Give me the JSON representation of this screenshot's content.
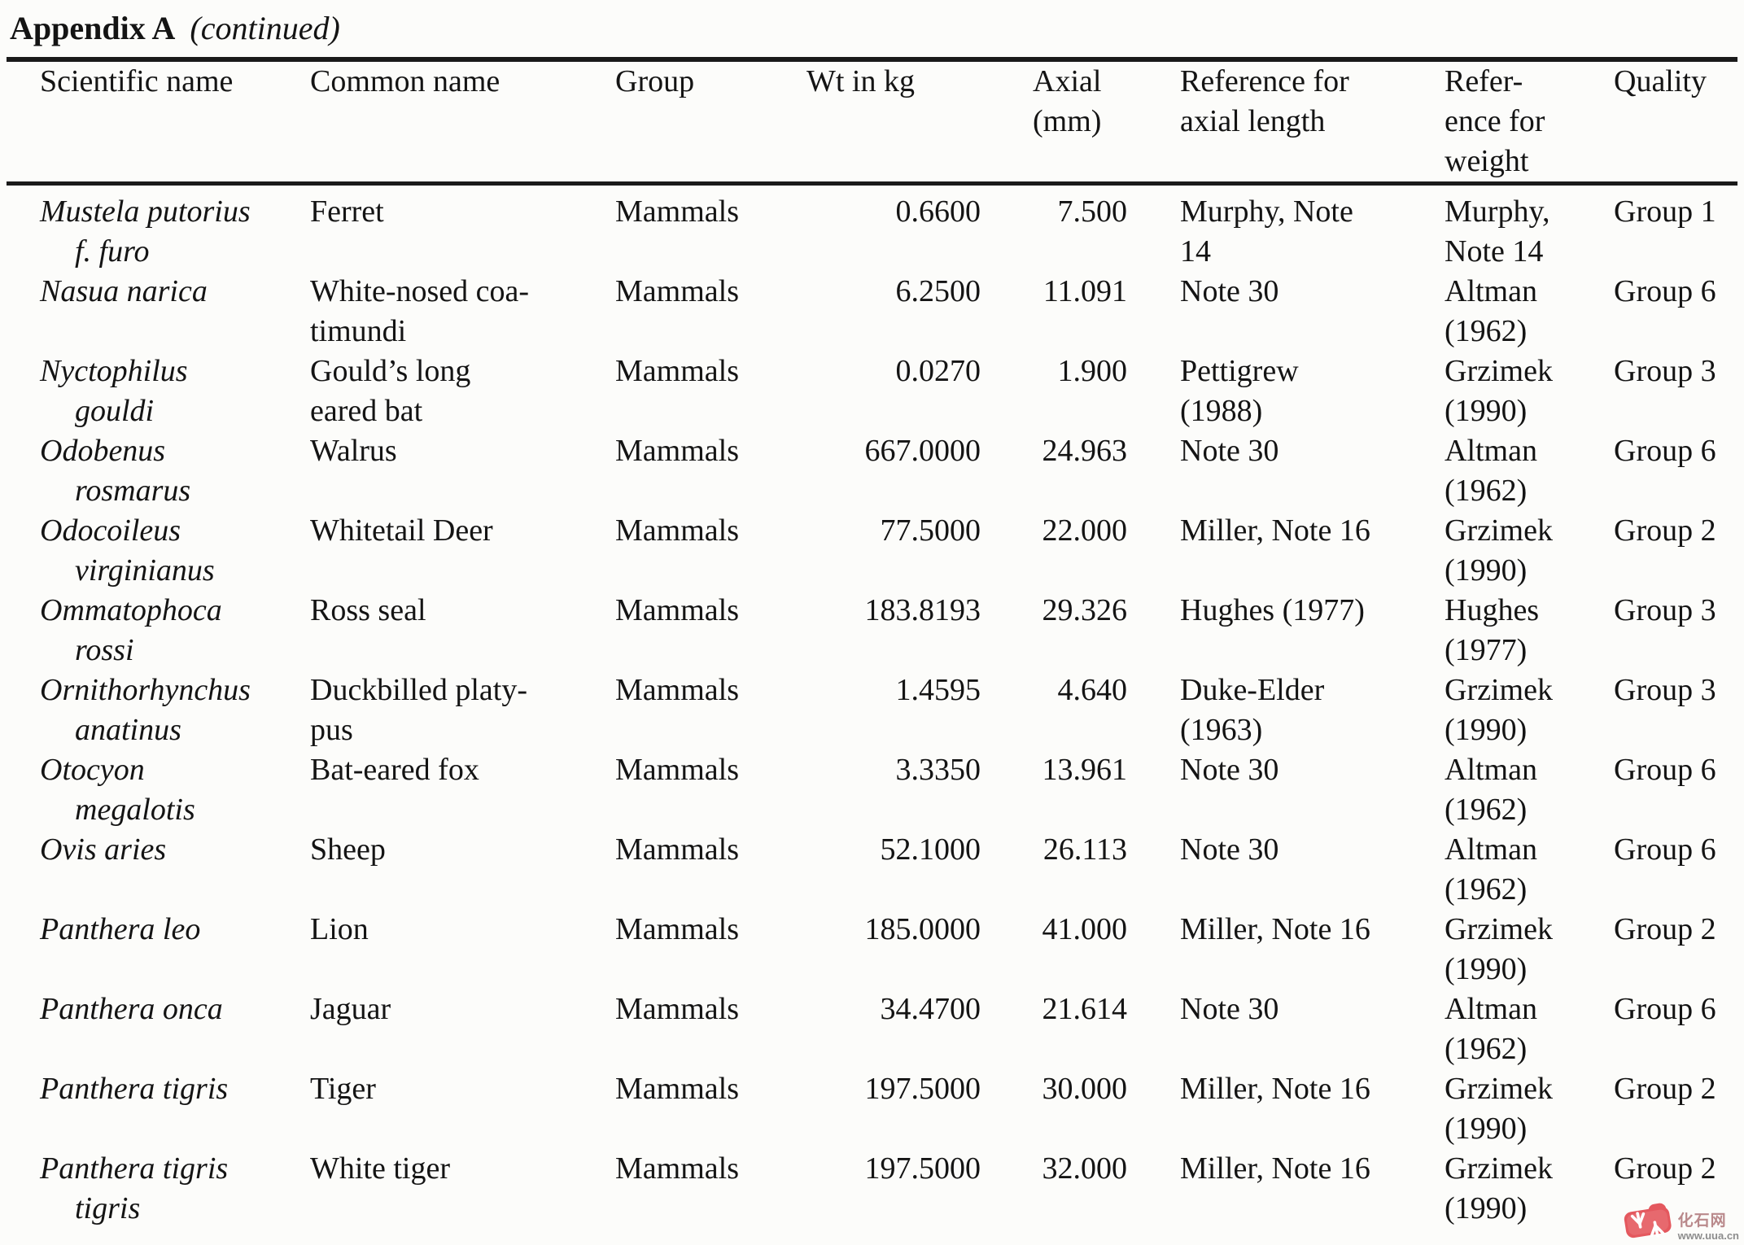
{
  "header": {
    "title": "Appendix A",
    "continued": "(continued)"
  },
  "table": {
    "columns": [
      {
        "key": "scientific",
        "label": "Scientific name"
      },
      {
        "key": "common",
        "label": "Common name"
      },
      {
        "key": "group",
        "label": "Group"
      },
      {
        "key": "wt",
        "label": "Wt in kg"
      },
      {
        "key": "axial",
        "label": "Axial\n(mm)"
      },
      {
        "key": "ref_axial",
        "label": "Reference for\naxial length"
      },
      {
        "key": "ref_weight",
        "label": "Refer-\nence for\nweight"
      },
      {
        "key": "quality",
        "label": "Quality"
      }
    ],
    "rows": [
      {
        "scientific": "Mustela putorius\nf. furo",
        "common": "Ferret",
        "group": "Mammals",
        "wt": "0.6600",
        "axial": "7.500",
        "ref_axial": "Murphy, Note\n14",
        "ref_weight": "Murphy,\nNote 14",
        "quality": "Group 1"
      },
      {
        "scientific": "Nasua narica",
        "common": "White-nosed coa-\ntimundi",
        "group": "Mammals",
        "wt": "6.2500",
        "axial": "11.091",
        "ref_axial": "Note 30",
        "ref_weight": "Altman\n(1962)",
        "quality": "Group 6"
      },
      {
        "scientific": "Nyctophilus\ngouldi",
        "common": "Gould’s long\neared bat",
        "group": "Mammals",
        "wt": "0.0270",
        "axial": "1.900",
        "ref_axial": "Pettigrew\n(1988)",
        "ref_weight": "Grzimek\n(1990)",
        "quality": "Group 3"
      },
      {
        "scientific": "Odobenus\nrosmarus",
        "common": "Walrus",
        "group": "Mammals",
        "wt": "667.0000",
        "axial": "24.963",
        "ref_axial": "Note 30",
        "ref_weight": "Altman\n(1962)",
        "quality": "Group 6"
      },
      {
        "scientific": "Odocoileus\nvirginianus",
        "common": "Whitetail Deer",
        "group": "Mammals",
        "wt": "77.5000",
        "axial": "22.000",
        "ref_axial": "Miller, Note 16",
        "ref_weight": "Grzimek\n(1990)",
        "quality": "Group 2"
      },
      {
        "scientific": "Ommatophoca\nrossi",
        "common": "Ross seal",
        "group": "Mammals",
        "wt": "183.8193",
        "axial": "29.326",
        "ref_axial": "Hughes (1977)",
        "ref_weight": "Hughes\n(1977)",
        "quality": "Group 3"
      },
      {
        "scientific": "Ornithorhynchus\nanatinus",
        "common": "Duckbilled platy-\npus",
        "group": "Mammals",
        "wt": "1.4595",
        "axial": "4.640",
        "ref_axial": "Duke-Elder\n(1963)",
        "ref_weight": "Grzimek\n(1990)",
        "quality": "Group 3"
      },
      {
        "scientific": "Otocyon\nmegalotis",
        "common": "Bat-eared fox",
        "group": "Mammals",
        "wt": "3.3350",
        "axial": "13.961",
        "ref_axial": "Note 30",
        "ref_weight": "Altman\n(1962)",
        "quality": "Group 6"
      },
      {
        "scientific": "Ovis aries",
        "common": "Sheep",
        "group": "Mammals",
        "wt": "52.1000",
        "axial": "26.113",
        "ref_axial": "Note 30",
        "ref_weight": "Altman\n(1962)",
        "quality": "Group 6"
      },
      {
        "scientific": "Panthera leo",
        "common": "Lion",
        "group": "Mammals",
        "wt": "185.0000",
        "axial": "41.000",
        "ref_axial": "Miller, Note 16",
        "ref_weight": "Grzimek\n(1990)",
        "quality": "Group 2"
      },
      {
        "scientific": "Panthera onca",
        "common": "Jaguar",
        "group": "Mammals",
        "wt": "34.4700",
        "axial": "21.614",
        "ref_axial": "Note 30",
        "ref_weight": "Altman\n(1962)",
        "quality": "Group 6"
      },
      {
        "scientific": "Panthera tigris",
        "common": "Tiger",
        "group": "Mammals",
        "wt": "197.5000",
        "axial": "30.000",
        "ref_axial": "Miller, Note 16",
        "ref_weight": "Grzimek\n(1990)",
        "quality": "Group 2"
      },
      {
        "scientific": "Panthera tigris\ntigris",
        "common": "White tiger",
        "group": "Mammals",
        "wt": "197.5000",
        "axial": "32.000",
        "ref_axial": "Miller, Note 16",
        "ref_weight": "Grzimek\n(1990)",
        "quality": "Group 2"
      }
    ]
  },
  "watermark": {
    "site_name": "化石网",
    "site_url": "www.uua.cn",
    "logo_color": "#e4585e"
  }
}
